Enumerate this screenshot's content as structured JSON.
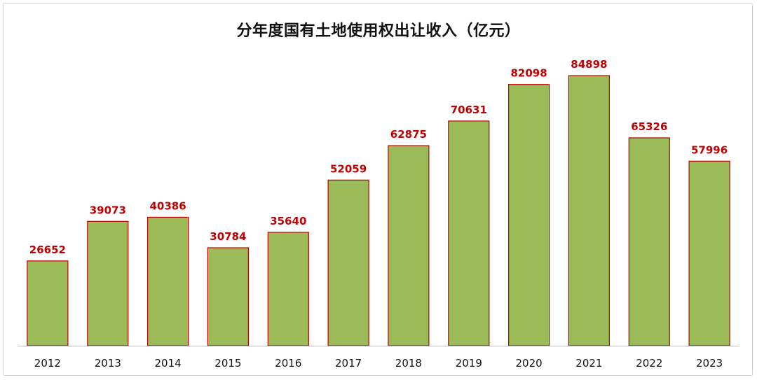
{
  "chart_data": {
    "type": "bar",
    "title": "分年度国有土地使用权出让收入（亿元）",
    "categories": [
      "2012",
      "2013",
      "2014",
      "2015",
      "2016",
      "2017",
      "2018",
      "2019",
      "2020",
      "2021",
      "2022",
      "2023"
    ],
    "values": [
      26652,
      39073,
      40386,
      30784,
      35640,
      52059,
      62875,
      70631,
      82098,
      84898,
      65326,
      57996
    ],
    "xlabel": "",
    "ylabel": "",
    "ylim": [
      0,
      100000
    ],
    "grid": false,
    "legend": "none",
    "data_labels": true,
    "colors": {
      "bar_fill": "#9bbb59",
      "bar_stroke": "#c00000",
      "label_color": "#c00000",
      "axis_color": "#bfbfbf"
    }
  }
}
